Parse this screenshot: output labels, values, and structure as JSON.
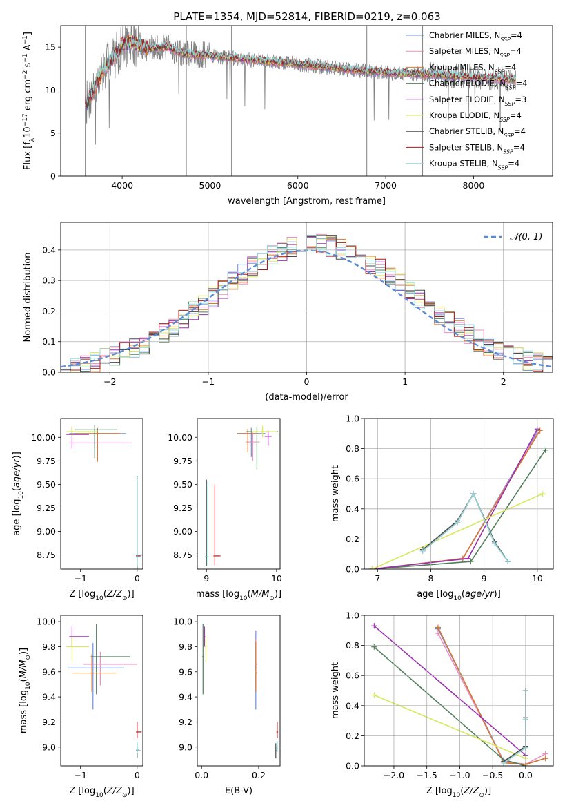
{
  "figure": {
    "title": "PLATE=1354, MJD=52814, FIBERID=0219, z=0.063",
    "series_colors": [
      "#6f8fd9",
      "#ee8fbf",
      "#d7772f",
      "#4f7f5a",
      "#9a2fb0",
      "#d7e85a",
      "#4a4a4a",
      "#b01818",
      "#8fdde0"
    ],
    "data_color": "#808080",
    "grid_color": "#b0b0b0"
  },
  "chart_data": [
    {
      "id": "spectrum",
      "type": "line",
      "title": "PLATE=1354, MJD=52814, FIBERID=0219, z=0.063",
      "xlabel": "wavelength [Angstrom, rest frame]",
      "ylabel": "Flux [f$_\\lambda$10$^{-17}$ erg cm$^{-2}$ s$^{-1}$ A$^{-1}$]",
      "ylabel_parts": {
        "a": "Flux [f",
        "b": "λ",
        "c": "10",
        "d": "−17",
        "e": " erg cm",
        "f": "−2",
        "g": " s",
        "h": "−1",
        "i": " A",
        "j": "−1",
        "k": "]"
      },
      "xlim": [
        3300,
        8900
      ],
      "ylim": [
        0,
        17.5
      ],
      "xticks": [
        4000,
        5000,
        6000,
        7000,
        8000
      ],
      "yticks": [
        0,
        5,
        10,
        15
      ],
      "grid": false,
      "legend_position": "upper right",
      "continuum_knots": {
        "x": [
          3600,
          3700,
          3800,
          3900,
          4000,
          4100,
          4300,
          4500,
          4700,
          5000,
          5500,
          6000,
          6500,
          7000,
          7500,
          8000,
          8500
        ],
        "y": [
          8.5,
          10.5,
          12.5,
          13.8,
          15.2,
          15.6,
          14.8,
          15.0,
          14.2,
          14.0,
          13.5,
          13.0,
          12.5,
          12.0,
          11.8,
          11.5,
          11.2
        ]
      },
      "series": [
        {
          "label": "Chabrier MILES",
          "nssp": "4"
        },
        {
          "label": "Salpeter MILES",
          "nssp": "4"
        },
        {
          "label": "Kroupa MILES",
          "nssp": "4"
        },
        {
          "label": "Chabrier ELODIE",
          "nssp": "4"
        },
        {
          "label": "Salpeter ELODIE",
          "nssp": "3"
        },
        {
          "label": "Kroupa ELODIE",
          "nssp": "4"
        },
        {
          "label": "Chabrier STELIB",
          "nssp": "4"
        },
        {
          "label": "Salpeter STELIB",
          "nssp": "4"
        },
        {
          "label": "Kroupa STELIB",
          "nssp": "4"
        }
      ],
      "legend_sub": "SSP",
      "legend_n": "N"
    },
    {
      "id": "residuals",
      "type": "histogram",
      "xlabel": "(data-model)/error",
      "ylabel": "Normed distribution",
      "xlim": [
        -2.5,
        2.5
      ],
      "ylim": [
        0,
        0.49
      ],
      "xticks": [
        -2,
        -1,
        0,
        1,
        2
      ],
      "xtick_labels": [
        "−2",
        "−1",
        "0",
        "1",
        "2"
      ],
      "yticks": [
        0.0,
        0.1,
        0.2,
        0.3,
        0.4
      ],
      "ytick_labels": [
        "0.0",
        "0.1",
        "0.2",
        "0.3",
        "0.4"
      ],
      "grid": true,
      "bin_width": 0.1,
      "bins_from": -2.5,
      "legend": {
        "label": "𝒩(0, 1)",
        "position": "upper right"
      },
      "gaussian": {
        "mu": 0,
        "sigma": 1,
        "style": "dashed"
      }
    },
    {
      "id": "age_vs_z",
      "type": "errorbar",
      "xlabel": "Z [log$_{10}$(Z/Z$_\\odot$)]",
      "ylabel": "age  [log$_{10}$(age/yr)]",
      "xlim": [
        -1.35,
        0.1
      ],
      "ylim": [
        8.6,
        10.2
      ],
      "xticks": [
        -1,
        0
      ],
      "xtick_labels": [
        "−1",
        "0"
      ],
      "yticks": [
        8.75,
        9.0,
        9.25,
        9.5,
        9.75,
        10.0
      ],
      "ytick_labels": [
        "8.75",
        "9.00",
        "9.25",
        "9.50",
        "9.75",
        "10.00"
      ],
      "grid": false,
      "points": [
        {
          "x": -0.75,
          "y": 10.04,
          "xerr": [
            0.45,
            0.55
          ],
          "yerr": [
            0.15,
            0.05
          ]
        },
        {
          "x": -0.7,
          "y": 9.94,
          "xerr": [
            0.5,
            0.6
          ],
          "yerr": [
            0.15,
            0.1
          ]
        },
        {
          "x": -0.7,
          "y": 10.04,
          "xerr": [
            0.4,
            0.4
          ],
          "yerr": [
            0.3,
            0.06
          ]
        },
        {
          "x": -0.75,
          "y": 10.08,
          "xerr": [
            0.35,
            0.4
          ],
          "yerr": [
            0.3,
            0.05
          ]
        },
        {
          "x": -1.15,
          "y": 10.03,
          "xerr": [
            0.1,
            0.3
          ],
          "yerr": [
            0.15,
            0.08
          ]
        },
        {
          "x": -1.15,
          "y": 10.06,
          "xerr": [
            0.1,
            0.45
          ],
          "yerr": [
            0.05,
            0.05
          ]
        },
        {
          "x": 0.0,
          "y": 8.75,
          "xerr": [
            0.02,
            0.1
          ],
          "yerr": [
            0.15,
            0.84
          ]
        },
        {
          "x": 0.0,
          "y": 8.74,
          "xerr": [
            0.02,
            0.06
          ],
          "yerr": [
            0.1,
            0.8
          ]
        },
        {
          "x": 0.0,
          "y": 8.73,
          "xerr": [
            0.02,
            0.08
          ],
          "yerr": [
            0.1,
            0.85
          ]
        }
      ]
    },
    {
      "id": "age_vs_mass",
      "type": "errorbar",
      "xlabel": "mass [log$_{10}$(M/M$_\\odot$)]",
      "ylabel": "",
      "xlim": [
        8.87,
        10.05
      ],
      "ylim": [
        8.6,
        10.2
      ],
      "xticks": [
        9,
        10
      ],
      "xtick_labels": [
        "9",
        "10"
      ],
      "yticks": [
        8.75,
        9.0,
        9.25,
        9.5,
        9.75,
        10.0
      ],
      "ytick_labels": [
        "8.75",
        "9.00",
        "9.25",
        "9.50",
        "9.75",
        "10.00"
      ],
      "grid": false,
      "points": [
        {
          "x": 9.64,
          "y": 10.04,
          "xerr": [
            0.2,
            0.2
          ],
          "yerr": [
            0.25,
            0.06
          ]
        },
        {
          "x": 9.66,
          "y": 9.95,
          "xerr": [
            0.1,
            0.1
          ],
          "yerr": [
            0.2,
            0.1
          ]
        },
        {
          "x": 9.59,
          "y": 10.04,
          "xerr": [
            0.15,
            0.15
          ],
          "yerr": [
            0.2,
            0.05
          ]
        },
        {
          "x": 9.72,
          "y": 10.06,
          "xerr": [
            0.15,
            0.3
          ],
          "yerr": [
            0.4,
            0.05
          ]
        },
        {
          "x": 9.88,
          "y": 10.01,
          "xerr": [
            0.05,
            0.05
          ],
          "yerr": [
            0.1,
            0.06
          ]
        },
        {
          "x": 9.8,
          "y": 10.06,
          "xerr": [
            0.15,
            0.2
          ],
          "yerr": [
            0.06,
            0.06
          ]
        },
        {
          "x": 9.0,
          "y": 8.73,
          "xerr": [
            0.02,
            0.02
          ],
          "yerr": [
            0.1,
            0.82
          ]
        },
        {
          "x": 9.12,
          "y": 8.74,
          "xerr": [
            0.02,
            0.08
          ],
          "yerr": [
            0.1,
            0.76
          ]
        },
        {
          "x": 9.02,
          "y": 8.73,
          "xerr": [
            0.05,
            0.02
          ],
          "yerr": [
            0.1,
            0.8
          ]
        }
      ]
    },
    {
      "id": "weight_vs_age",
      "type": "line",
      "xlabel": "age  [log$_{10}$(age/yr)]",
      "ylabel": "mass weight",
      "xlim": [
        6.75,
        10.3
      ],
      "ylim": [
        0,
        1
      ],
      "xticks": [
        7,
        8,
        9,
        10
      ],
      "xtick_labels": [
        "7",
        "8",
        "9",
        "10"
      ],
      "yticks": [
        0.0,
        0.2,
        0.4,
        0.6,
        0.8,
        1.0
      ],
      "ytick_labels": [
        "0.0",
        "0.2",
        "0.4",
        "0.6",
        "0.8",
        "1.0"
      ],
      "grid": true,
      "series": [
        {
          "x": [
            6.9,
            8.6,
            10.0
          ],
          "y": [
            0.0,
            0.07,
            0.91
          ]
        },
        {
          "x": [
            6.9,
            8.6,
            10.0
          ],
          "y": [
            0.0,
            0.07,
            0.9
          ]
        },
        {
          "x": [
            6.9,
            8.6,
            10.05
          ],
          "y": [
            0.0,
            0.07,
            0.92
          ]
        },
        {
          "x": [
            6.9,
            8.75,
            10.15
          ],
          "y": [
            0.0,
            0.05,
            0.79
          ]
        },
        {
          "x": [
            6.9,
            8.7,
            10.0
          ],
          "y": [
            0.0,
            0.07,
            0.93
          ]
        },
        {
          "x": [
            6.9,
            10.1
          ],
          "y": [
            0.0,
            0.5
          ]
        },
        {
          "x": [
            7.85,
            8.5,
            8.8,
            9.2,
            9.45
          ],
          "y": [
            0.13,
            0.32,
            0.5,
            0.18,
            0.05
          ]
        },
        {
          "x": [
            7.85,
            8.5,
            8.8,
            9.2,
            9.45
          ],
          "y": [
            0.12,
            0.31,
            0.5,
            0.17,
            0.05
          ]
        },
        {
          "x": [
            7.85,
            8.5,
            8.8,
            9.2,
            9.45
          ],
          "y": [
            0.12,
            0.31,
            0.5,
            0.17,
            0.05
          ]
        }
      ]
    },
    {
      "id": "mass_vs_z",
      "type": "errorbar",
      "xlabel": "Z [log$_{10}$(Z/Z$_\\odot$)]",
      "ylabel": "mass [log$_{10}$(M/M$_\\odot$)]",
      "xlim": [
        -1.35,
        0.1
      ],
      "ylim": [
        8.85,
        10.05
      ],
      "xticks": [
        -1,
        0
      ],
      "xtick_labels": [
        "−1",
        "0"
      ],
      "yticks": [
        9.0,
        9.2,
        9.4,
        9.6,
        9.8,
        10.0
      ],
      "ytick_labels": [
        "9.0",
        "9.2",
        "9.4",
        "9.6",
        "9.8",
        "10.0"
      ],
      "grid": false,
      "points": [
        {
          "x": -0.78,
          "y": 9.63,
          "xerr": [
            0.45,
            0.55
          ],
          "yerr": [
            0.33,
            0.2
          ]
        },
        {
          "x": -0.65,
          "y": 9.66,
          "xerr": [
            0.3,
            0.65
          ],
          "yerr": [
            0.17,
            0.1
          ]
        },
        {
          "x": -0.8,
          "y": 9.59,
          "xerr": [
            0.35,
            0.45
          ],
          "yerr": [
            0.15,
            0.15
          ]
        },
        {
          "x": -0.72,
          "y": 9.72,
          "xerr": [
            0.1,
            0.6
          ],
          "yerr": [
            0.3,
            0.26
          ]
        },
        {
          "x": -1.15,
          "y": 9.88,
          "xerr": [
            0.05,
            0.3
          ],
          "yerr": [
            0.08,
            0.08
          ]
        },
        {
          "x": -1.15,
          "y": 9.8,
          "xerr": [
            0.1,
            0.3
          ],
          "yerr": [
            0.12,
            0.08
          ]
        },
        {
          "x": 0.0,
          "y": 8.97,
          "xerr": [
            0.02,
            0.06
          ],
          "yerr": [
            0.06,
            0.06
          ]
        },
        {
          "x": 0.0,
          "y": 9.12,
          "xerr": [
            0.02,
            0.08
          ],
          "yerr": [
            0.05,
            0.08
          ]
        },
        {
          "x": 0.0,
          "y": 8.98,
          "xerr": [
            0.02,
            0.04
          ],
          "yerr": [
            0.03,
            0.06
          ]
        }
      ]
    },
    {
      "id": "mass_vs_ebv",
      "type": "errorbar",
      "xlabel": "E(B-V)",
      "ylabel": "",
      "xlim": [
        -0.015,
        0.275
      ],
      "ylim": [
        8.85,
        10.05
      ],
      "xticks": [
        0.0,
        0.2
      ],
      "xtick_labels": [
        "0.0",
        "0.2"
      ],
      "yticks": [
        9.0,
        9.2,
        9.4,
        9.6,
        9.8,
        10.0
      ],
      "ytick_labels": [
        "9.0",
        "9.2",
        "9.4",
        "9.6",
        "9.8",
        "10.0"
      ],
      "grid": false,
      "points": [
        {
          "x": 0.19,
          "y": 9.63,
          "xerr": [
            0.003,
            0.003
          ],
          "yerr": [
            0.33,
            0.3
          ]
        },
        {
          "x": 0.19,
          "y": 9.66,
          "xerr": [
            0.003,
            0.003
          ],
          "yerr": [
            0.17,
            0.2
          ]
        },
        {
          "x": 0.19,
          "y": 9.59,
          "xerr": [
            0.003,
            0.003
          ],
          "yerr": [
            0.15,
            0.25
          ]
        },
        {
          "x": 0.005,
          "y": 9.72,
          "xerr": [
            0.003,
            0.003
          ],
          "yerr": [
            0.3,
            0.26
          ]
        },
        {
          "x": 0.01,
          "y": 9.88,
          "xerr": [
            0.003,
            0.003
          ],
          "yerr": [
            0.08,
            0.08
          ]
        },
        {
          "x": 0.015,
          "y": 9.8,
          "xerr": [
            0.003,
            0.003
          ],
          "yerr": [
            0.12,
            0.08
          ]
        },
        {
          "x": 0.26,
          "y": 8.97,
          "xerr": [
            0.003,
            0.003
          ],
          "yerr": [
            0.06,
            0.06
          ]
        },
        {
          "x": 0.265,
          "y": 9.12,
          "xerr": [
            0.003,
            0.003
          ],
          "yerr": [
            0.05,
            0.08
          ]
        },
        {
          "x": 0.265,
          "y": 8.99,
          "xerr": [
            0.003,
            0.003
          ],
          "yerr": [
            0.03,
            0.06
          ]
        }
      ]
    },
    {
      "id": "weight_vs_z",
      "type": "line",
      "xlabel": "Z [log$_{10}$(Z/Z$_\\odot$)]",
      "ylabel": "mass weight",
      "xlim": [
        -2.45,
        0.42
      ],
      "ylim": [
        0,
        1
      ],
      "xticks": [
        -2.0,
        -1.5,
        -1.0,
        -0.5,
        0.0
      ],
      "xtick_labels": [
        "−2.0",
        "−1.5",
        "−1.0",
        "−0.5",
        "0.0"
      ],
      "yticks": [
        0.0,
        0.2,
        0.4,
        0.6,
        0.8,
        1.0
      ],
      "ytick_labels": [
        "0.0",
        "0.2",
        "0.4",
        "0.6",
        "0.8",
        "1.0"
      ],
      "grid": true,
      "series": [
        {
          "x": [
            -1.33,
            -0.33,
            0.0,
            0.3
          ],
          "y": [
            0.91,
            0.03,
            0.01,
            0.05
          ]
        },
        {
          "x": [
            -1.33,
            -0.33,
            0.0,
            0.3
          ],
          "y": [
            0.88,
            0.03,
            0.01,
            0.08
          ]
        },
        {
          "x": [
            -1.33,
            -0.33,
            0.0,
            0.3
          ],
          "y": [
            0.92,
            0.02,
            0.01,
            0.05
          ]
        },
        {
          "x": [
            -2.3,
            -0.33,
            0.0
          ],
          "y": [
            0.79,
            0.04,
            0.0
          ]
        },
        {
          "x": [
            -2.3,
            0.0
          ],
          "y": [
            0.93,
            0.07
          ]
        },
        {
          "x": [
            -2.3,
            0.0
          ],
          "y": [
            0.47,
            0.05
          ]
        },
        {
          "x": [
            -0.33,
            0.0,
            0.0,
            0.0
          ],
          "y": [
            0.03,
            0.13,
            0.32,
            0.5
          ]
        },
        {
          "x": [
            -0.33,
            0.0,
            0.0,
            0.0
          ],
          "y": [
            0.02,
            0.12,
            0.31,
            0.5
          ]
        },
        {
          "x": [
            -0.33,
            0.0,
            0.0,
            0.0
          ],
          "y": [
            0.02,
            0.12,
            0.31,
            0.5
          ]
        }
      ]
    }
  ]
}
